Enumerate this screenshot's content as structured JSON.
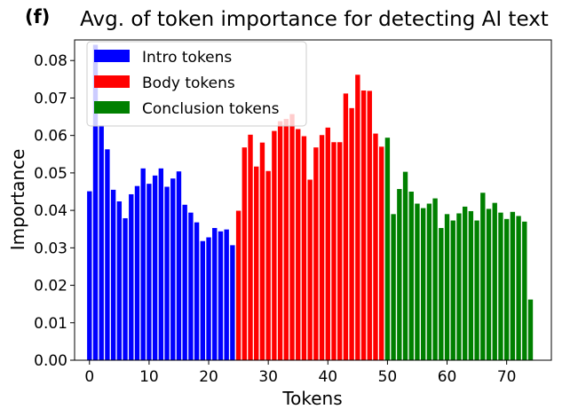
{
  "panel_label": "(f)",
  "chart_data": {
    "type": "bar",
    "title": "Avg. of token importance for detecting AI text",
    "xlabel": "Tokens",
    "ylabel": "Importance",
    "xlim": [
      -2.5,
      77.5
    ],
    "ylim": [
      0,
      0.0855
    ],
    "xticks": [
      0,
      10,
      20,
      30,
      40,
      50,
      60,
      70
    ],
    "xtick_labels": [
      "0",
      "10",
      "20",
      "30",
      "40",
      "50",
      "60",
      "70"
    ],
    "yticks": [
      0,
      0.01,
      0.02,
      0.03,
      0.04,
      0.05,
      0.06,
      0.07,
      0.08
    ],
    "ytick_labels": [
      "0.00",
      "0.01",
      "0.02",
      "0.03",
      "0.04",
      "0.05",
      "0.06",
      "0.07",
      "0.08"
    ],
    "grid": false,
    "legend_position": "top-left",
    "series": [
      {
        "name": "Intro tokens",
        "color": "#0000ff",
        "x": [
          0,
          1,
          2,
          3,
          4,
          5,
          6,
          7,
          8,
          9,
          10,
          11,
          12,
          13,
          14,
          15,
          16,
          17,
          18,
          19,
          20,
          21,
          22,
          23,
          24
        ],
        "values": [
          0.0451,
          0.0842,
          0.0627,
          0.0563,
          0.0455,
          0.0424,
          0.0379,
          0.0443,
          0.0465,
          0.0512,
          0.0471,
          0.0493,
          0.0512,
          0.0463,
          0.0485,
          0.0504,
          0.0415,
          0.0394,
          0.0368,
          0.0318,
          0.0328,
          0.0353,
          0.0344,
          0.0349,
          0.0307
        ]
      },
      {
        "name": "Body tokens",
        "color": "#ff0000",
        "x": [
          25,
          26,
          27,
          28,
          29,
          30,
          31,
          32,
          33,
          34,
          35,
          36,
          37,
          38,
          39,
          40,
          41,
          42,
          43,
          44,
          45,
          46,
          47,
          48,
          49
        ],
        "values": [
          0.0399,
          0.0568,
          0.0602,
          0.0517,
          0.0581,
          0.0505,
          0.0612,
          0.0638,
          0.0644,
          0.0657,
          0.0617,
          0.0598,
          0.0482,
          0.0568,
          0.0601,
          0.0621,
          0.0582,
          0.0582,
          0.0712,
          0.0673,
          0.0762,
          0.072,
          0.0719,
          0.0605,
          0.057
        ]
      },
      {
        "name": "Conclusion tokens",
        "color": "#008000",
        "x": [
          50,
          51,
          52,
          53,
          54,
          55,
          56,
          57,
          58,
          59,
          60,
          61,
          62,
          63,
          64,
          65,
          66,
          67,
          68,
          69,
          70,
          71,
          72,
          73,
          74
        ],
        "values": [
          0.0594,
          0.039,
          0.0457,
          0.0503,
          0.045,
          0.0418,
          0.0406,
          0.0418,
          0.0432,
          0.0353,
          0.039,
          0.0373,
          0.0392,
          0.041,
          0.0398,
          0.0373,
          0.0447,
          0.0404,
          0.042,
          0.0394,
          0.0377,
          0.0396,
          0.0385,
          0.037,
          0.0162
        ]
      }
    ]
  }
}
